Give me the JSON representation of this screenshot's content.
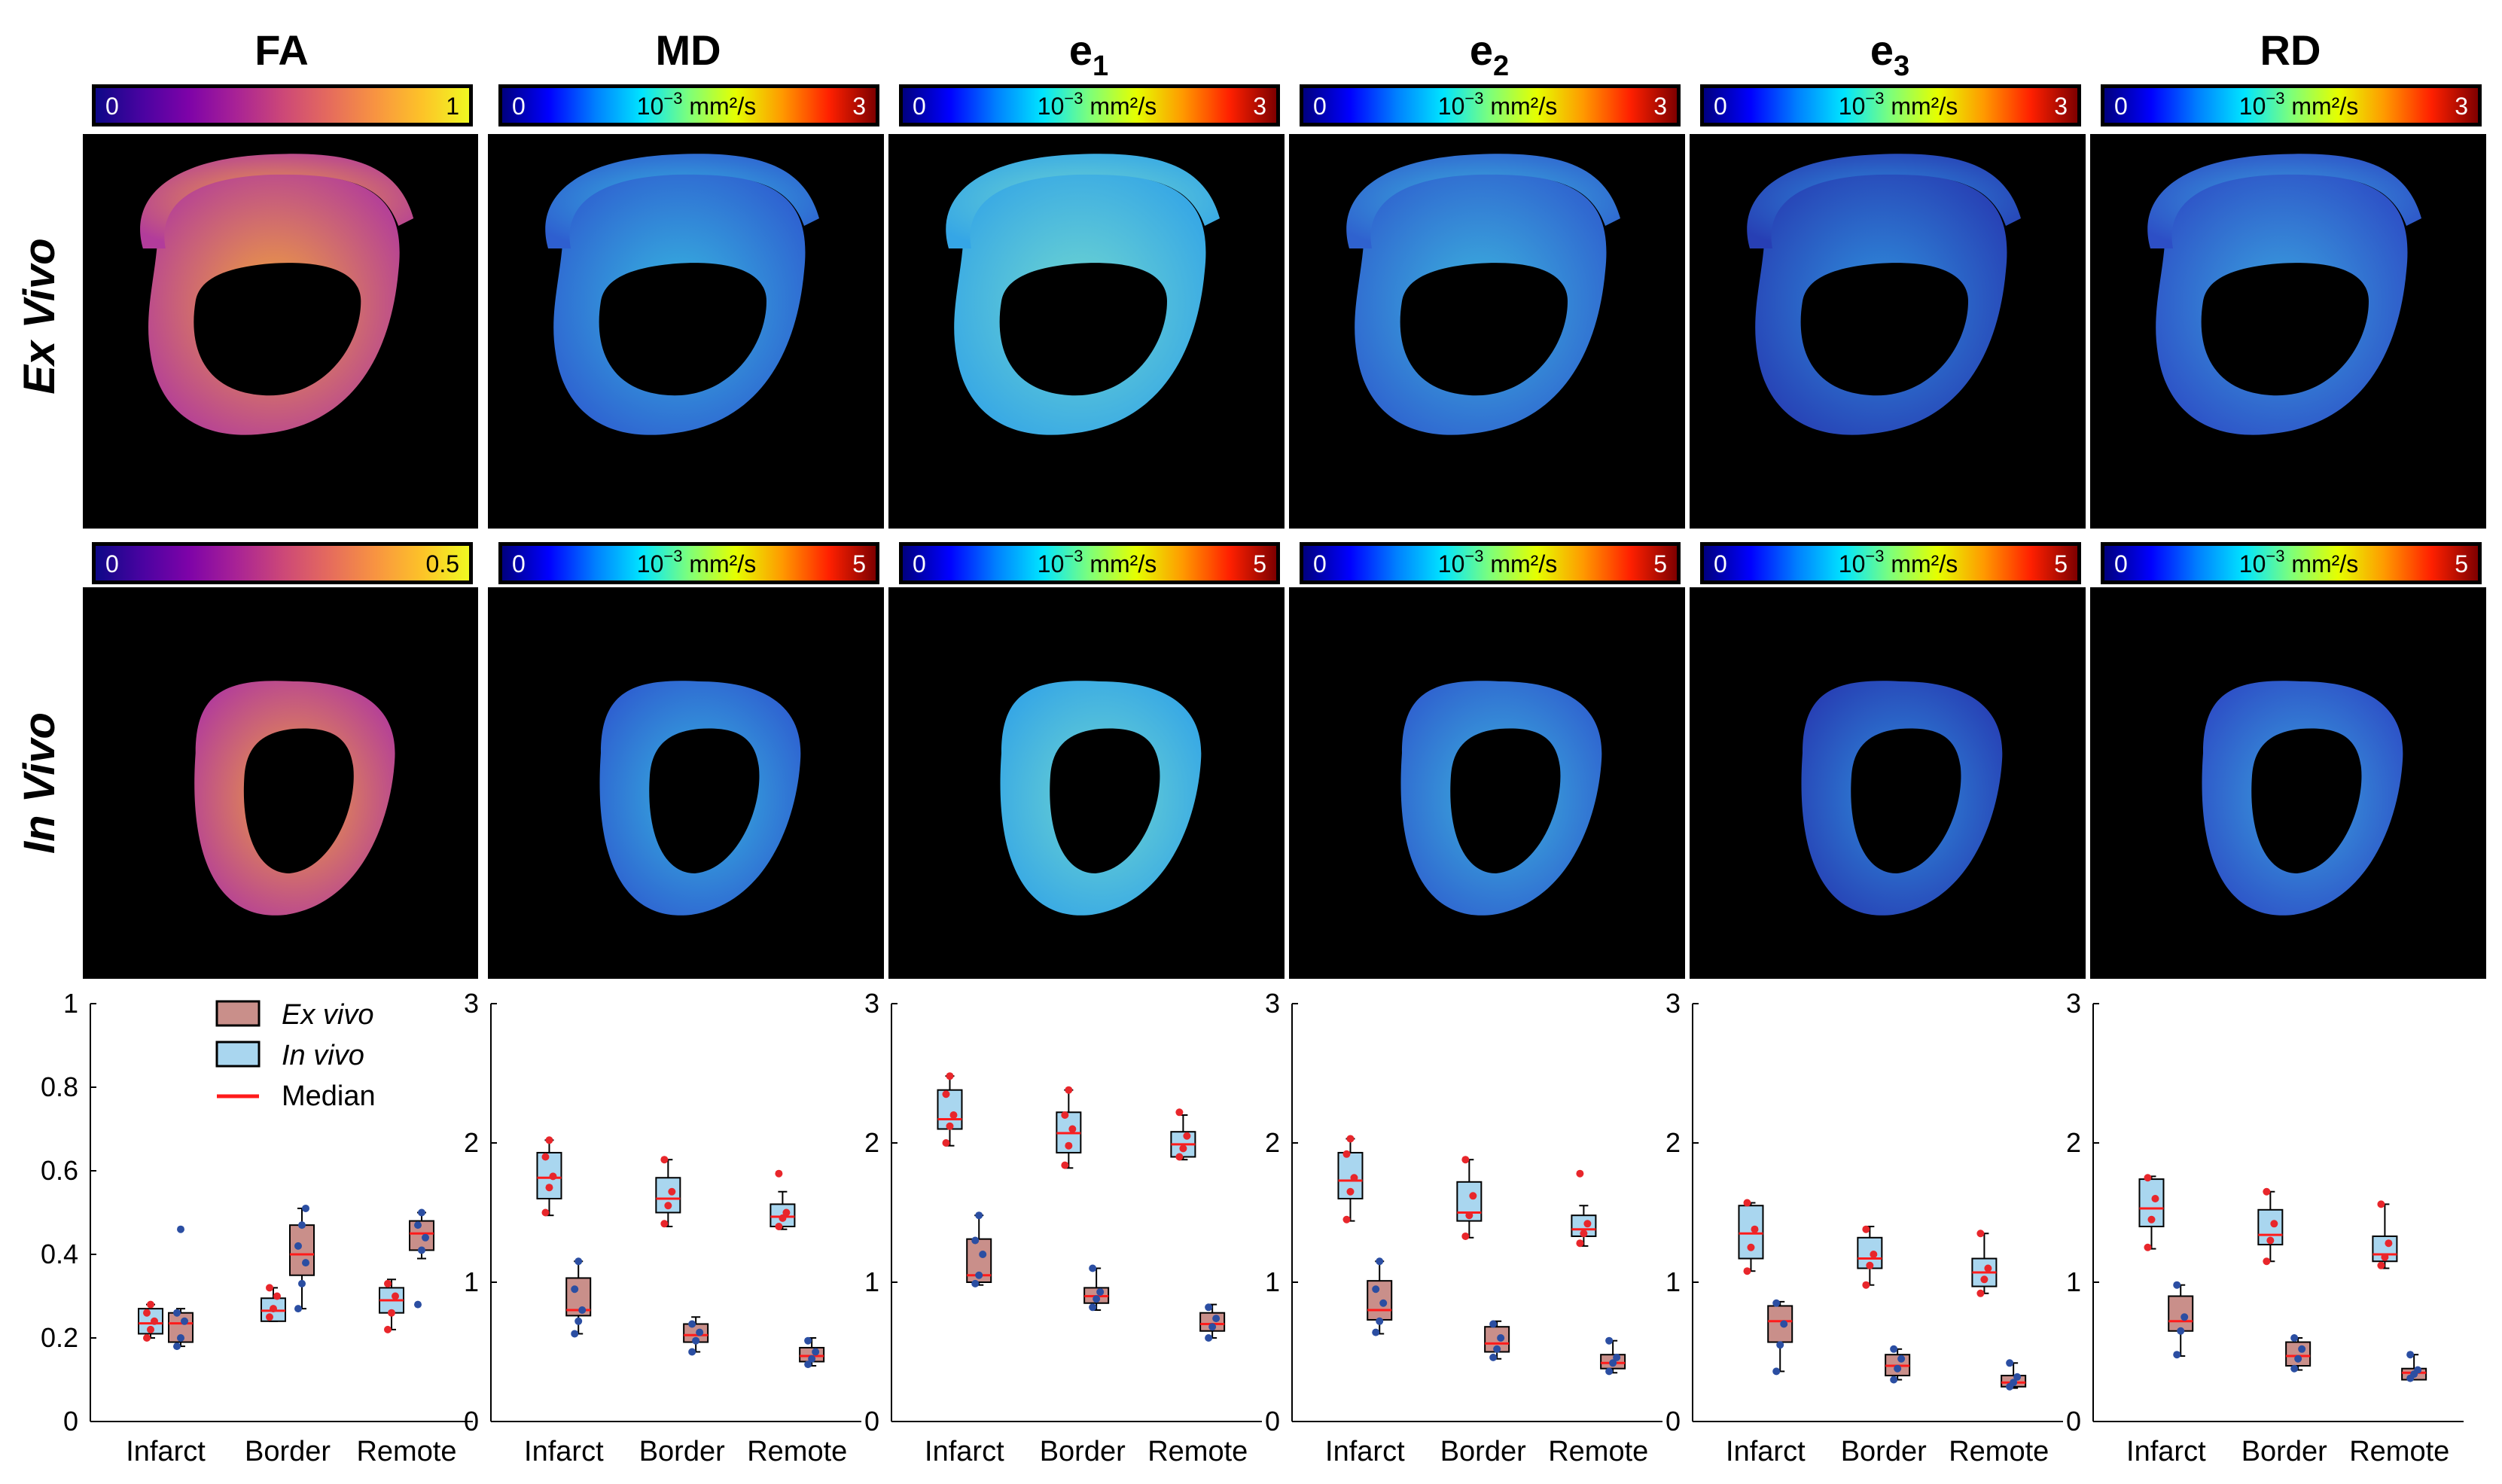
{
  "colors": {
    "ex_vivo_fill": "#c98f8a",
    "in_vivo_fill": "#a9d6ef",
    "median_color": "#ff1b1b",
    "ex_vivo_points": "#e8262b",
    "in_vivo_points": "#2b4ea2",
    "panel_background": "#000000"
  },
  "row_labels": {
    "ex_vivo": "Ex Vivo",
    "in_vivo": "In Vivo"
  },
  "columns": [
    {
      "title": "FA",
      "sub": "",
      "colormap": "plasma",
      "ex_cbar": {
        "min": "0",
        "max": "1",
        "unit_base": "",
        "unit_exp": "",
        "unit_tail": ""
      },
      "in_cbar": {
        "min": "0",
        "max": "0.5",
        "unit_base": "",
        "unit_exp": "",
        "unit_tail": ""
      }
    },
    {
      "title": "MD",
      "sub": "",
      "colormap": "jet",
      "ex_cbar": {
        "min": "0",
        "max": "3",
        "unit_base": "10",
        "unit_exp": "−3",
        "unit_tail": " mm²/s"
      },
      "in_cbar": {
        "min": "0",
        "max": "5",
        "unit_base": "10",
        "unit_exp": "−3",
        "unit_tail": " mm²/s"
      }
    },
    {
      "title": "e",
      "sub": "1",
      "colormap": "jet",
      "ex_cbar": {
        "min": "0",
        "max": "3",
        "unit_base": "10",
        "unit_exp": "−3",
        "unit_tail": " mm²/s"
      },
      "in_cbar": {
        "min": "0",
        "max": "5",
        "unit_base": "10",
        "unit_exp": "−3",
        "unit_tail": " mm²/s"
      }
    },
    {
      "title": "e",
      "sub": "2",
      "colormap": "jet",
      "ex_cbar": {
        "min": "0",
        "max": "3",
        "unit_base": "10",
        "unit_exp": "−3",
        "unit_tail": " mm²/s"
      },
      "in_cbar": {
        "min": "0",
        "max": "5",
        "unit_base": "10",
        "unit_exp": "−3",
        "unit_tail": " mm²/s"
      }
    },
    {
      "title": "e",
      "sub": "3",
      "colormap": "jet",
      "ex_cbar": {
        "min": "0",
        "max": "3",
        "unit_base": "10",
        "unit_exp": "−3",
        "unit_tail": " mm²/s"
      },
      "in_cbar": {
        "min": "0",
        "max": "5",
        "unit_base": "10",
        "unit_exp": "−3",
        "unit_tail": " mm²/s"
      }
    },
    {
      "title": "RD",
      "sub": "",
      "colormap": "jet",
      "ex_cbar": {
        "min": "0",
        "max": "3",
        "unit_base": "10",
        "unit_exp": "−3",
        "unit_tail": " mm²/s"
      },
      "in_cbar": {
        "min": "0",
        "max": "5",
        "unit_base": "10",
        "unit_exp": "−3",
        "unit_tail": " mm²/s"
      }
    }
  ],
  "legend": {
    "ex_vivo": "Ex vivo",
    "in_vivo": "In vivo",
    "median": "Median"
  },
  "chart_data": [
    {
      "type": "box",
      "title": "FA",
      "categories": [
        "Infarct",
        "Border",
        "Remote"
      ],
      "ylim": [
        0,
        1
      ],
      "yticks": [
        "0",
        "0.2",
        "0.4",
        "0.6",
        "0.8",
        "1"
      ],
      "in_vivo": [
        {
          "q1": 0.21,
          "median": 0.235,
          "q3": 0.27,
          "whisker_low": 0.2,
          "whisker_high": 0.28,
          "points": [
            0.2,
            0.22,
            0.24,
            0.26,
            0.28
          ]
        },
        {
          "q1": 0.24,
          "median": 0.265,
          "q3": 0.295,
          "whisker_low": 0.24,
          "whisker_high": 0.32,
          "points": [
            0.25,
            0.27,
            0.3,
            0.32
          ]
        },
        {
          "q1": 0.26,
          "median": 0.29,
          "q3": 0.32,
          "whisker_low": 0.22,
          "whisker_high": 0.34,
          "points": [
            0.22,
            0.26,
            0.3,
            0.33
          ]
        }
      ],
      "ex_vivo": [
        {
          "q1": 0.19,
          "median": 0.235,
          "q3": 0.26,
          "whisker_low": 0.18,
          "whisker_high": 0.27,
          "points": [
            0.18,
            0.2,
            0.24,
            0.26,
            0.46
          ]
        },
        {
          "q1": 0.35,
          "median": 0.4,
          "q3": 0.47,
          "whisker_low": 0.27,
          "whisker_high": 0.51,
          "points": [
            0.27,
            0.33,
            0.38,
            0.42,
            0.47,
            0.51
          ]
        },
        {
          "q1": 0.41,
          "median": 0.45,
          "q3": 0.48,
          "whisker_low": 0.39,
          "whisker_high": 0.5,
          "points": [
            0.28,
            0.41,
            0.44,
            0.47,
            0.5
          ]
        }
      ]
    },
    {
      "type": "box",
      "title": "MD",
      "categories": [
        "Infarct",
        "Border",
        "Remote"
      ],
      "ylim": [
        0,
        3
      ],
      "yticks": [
        "0",
        "1",
        "2",
        "3"
      ],
      "in_vivo": [
        {
          "q1": 1.6,
          "median": 1.75,
          "q3": 1.93,
          "whisker_low": 1.48,
          "whisker_high": 2.02,
          "points": [
            1.5,
            1.68,
            1.76,
            1.9,
            2.02
          ]
        },
        {
          "q1": 1.5,
          "median": 1.6,
          "q3": 1.75,
          "whisker_low": 1.4,
          "whisker_high": 1.88,
          "points": [
            1.42,
            1.55,
            1.65,
            1.88
          ]
        },
        {
          "q1": 1.4,
          "median": 1.47,
          "q3": 1.56,
          "whisker_low": 1.38,
          "whisker_high": 1.65,
          "points": [
            1.4,
            1.46,
            1.5,
            1.78
          ]
        }
      ],
      "ex_vivo": [
        {
          "q1": 0.76,
          "median": 0.8,
          "q3": 1.03,
          "whisker_low": 0.63,
          "whisker_high": 1.15,
          "points": [
            0.63,
            0.72,
            0.8,
            0.95,
            1.15
          ]
        },
        {
          "q1": 0.57,
          "median": 0.62,
          "q3": 0.7,
          "whisker_low": 0.5,
          "whisker_high": 0.75,
          "points": [
            0.5,
            0.58,
            0.64,
            0.7
          ]
        },
        {
          "q1": 0.43,
          "median": 0.47,
          "q3": 0.53,
          "whisker_low": 0.4,
          "whisker_high": 0.6,
          "points": [
            0.41,
            0.45,
            0.5,
            0.58
          ]
        }
      ]
    },
    {
      "type": "box",
      "title": "e1",
      "categories": [
        "Infarct",
        "Border",
        "Remote"
      ],
      "ylim": [
        0,
        3
      ],
      "yticks": [
        "0",
        "1",
        "2",
        "3"
      ],
      "in_vivo": [
        {
          "q1": 2.1,
          "median": 2.17,
          "q3": 2.38,
          "whisker_low": 1.98,
          "whisker_high": 2.48,
          "points": [
            2.0,
            2.12,
            2.2,
            2.35,
            2.48
          ]
        },
        {
          "q1": 1.93,
          "median": 2.07,
          "q3": 2.22,
          "whisker_low": 1.82,
          "whisker_high": 2.38,
          "points": [
            1.84,
            1.98,
            2.1,
            2.2,
            2.38
          ]
        },
        {
          "q1": 1.9,
          "median": 1.99,
          "q3": 2.08,
          "whisker_low": 1.88,
          "whisker_high": 2.2,
          "points": [
            1.9,
            1.96,
            2.05,
            2.22
          ]
        }
      ],
      "ex_vivo": [
        {
          "q1": 1.0,
          "median": 1.05,
          "q3": 1.31,
          "whisker_low": 0.98,
          "whisker_high": 1.48,
          "points": [
            0.99,
            1.05,
            1.2,
            1.3,
            1.48
          ]
        },
        {
          "q1": 0.85,
          "median": 0.9,
          "q3": 0.96,
          "whisker_low": 0.8,
          "whisker_high": 1.1,
          "points": [
            0.82,
            0.88,
            0.93,
            1.1
          ]
        },
        {
          "q1": 0.65,
          "median": 0.7,
          "q3": 0.78,
          "whisker_low": 0.6,
          "whisker_high": 0.84,
          "points": [
            0.6,
            0.68,
            0.74,
            0.82
          ]
        }
      ]
    },
    {
      "type": "box",
      "title": "e2",
      "categories": [
        "Infarct",
        "Border",
        "Remote"
      ],
      "ylim": [
        0,
        3
      ],
      "yticks": [
        "0",
        "1",
        "2",
        "3"
      ],
      "in_vivo": [
        {
          "q1": 1.6,
          "median": 1.73,
          "q3": 1.93,
          "whisker_low": 1.44,
          "whisker_high": 2.03,
          "points": [
            1.45,
            1.65,
            1.75,
            1.92,
            2.03
          ]
        },
        {
          "q1": 1.44,
          "median": 1.5,
          "q3": 1.72,
          "whisker_low": 1.32,
          "whisker_high": 1.88,
          "points": [
            1.33,
            1.48,
            1.62,
            1.88
          ]
        },
        {
          "q1": 1.33,
          "median": 1.38,
          "q3": 1.48,
          "whisker_low": 1.26,
          "whisker_high": 1.55,
          "points": [
            1.28,
            1.35,
            1.42,
            1.78
          ]
        }
      ],
      "ex_vivo": [
        {
          "q1": 0.73,
          "median": 0.8,
          "q3": 1.01,
          "whisker_low": 0.63,
          "whisker_high": 1.15,
          "points": [
            0.64,
            0.72,
            0.85,
            0.95,
            1.15
          ]
        },
        {
          "q1": 0.5,
          "median": 0.56,
          "q3": 0.68,
          "whisker_low": 0.45,
          "whisker_high": 0.72,
          "points": [
            0.46,
            0.52,
            0.6,
            0.7
          ]
        },
        {
          "q1": 0.38,
          "median": 0.42,
          "q3": 0.48,
          "whisker_low": 0.35,
          "whisker_high": 0.58,
          "points": [
            0.36,
            0.42,
            0.46,
            0.58
          ]
        }
      ]
    },
    {
      "type": "box",
      "title": "e3",
      "categories": [
        "Infarct",
        "Border",
        "Remote"
      ],
      "ylim": [
        0,
        3
      ],
      "yticks": [
        "0",
        "1",
        "2",
        "3"
      ],
      "in_vivo": [
        {
          "q1": 1.17,
          "median": 1.35,
          "q3": 1.55,
          "whisker_low": 1.08,
          "whisker_high": 1.57,
          "points": [
            1.08,
            1.25,
            1.38,
            1.57
          ]
        },
        {
          "q1": 1.1,
          "median": 1.17,
          "q3": 1.32,
          "whisker_low": 0.98,
          "whisker_high": 1.4,
          "points": [
            0.98,
            1.12,
            1.2,
            1.38
          ]
        },
        {
          "q1": 0.97,
          "median": 1.07,
          "q3": 1.17,
          "whisker_low": 0.92,
          "whisker_high": 1.35,
          "points": [
            0.92,
            1.02,
            1.1,
            1.35
          ]
        }
      ],
      "ex_vivo": [
        {
          "q1": 0.57,
          "median": 0.72,
          "q3": 0.83,
          "whisker_low": 0.36,
          "whisker_high": 0.86,
          "points": [
            0.36,
            0.55,
            0.7,
            0.85
          ]
        },
        {
          "q1": 0.33,
          "median": 0.4,
          "q3": 0.48,
          "whisker_low": 0.3,
          "whisker_high": 0.52,
          "points": [
            0.3,
            0.38,
            0.45,
            0.52
          ]
        },
        {
          "q1": 0.25,
          "median": 0.28,
          "q3": 0.33,
          "whisker_low": 0.24,
          "whisker_high": 0.42,
          "points": [
            0.25,
            0.28,
            0.32,
            0.42
          ]
        }
      ]
    },
    {
      "type": "box",
      "title": "RD",
      "categories": [
        "Infarct",
        "Border",
        "Remote"
      ],
      "ylim": [
        0,
        3
      ],
      "yticks": [
        "0",
        "1",
        "2",
        "3"
      ],
      "in_vivo": [
        {
          "q1": 1.4,
          "median": 1.53,
          "q3": 1.74,
          "whisker_low": 1.24,
          "whisker_high": 1.76,
          "points": [
            1.25,
            1.45,
            1.6,
            1.75
          ]
        },
        {
          "q1": 1.27,
          "median": 1.34,
          "q3": 1.52,
          "whisker_low": 1.15,
          "whisker_high": 1.65,
          "points": [
            1.15,
            1.3,
            1.42,
            1.65
          ]
        },
        {
          "q1": 1.15,
          "median": 1.2,
          "q3": 1.33,
          "whisker_low": 1.1,
          "whisker_high": 1.56,
          "points": [
            1.12,
            1.18,
            1.28,
            1.56
          ]
        }
      ],
      "ex_vivo": [
        {
          "q1": 0.65,
          "median": 0.72,
          "q3": 0.9,
          "whisker_low": 0.47,
          "whisker_high": 0.98,
          "points": [
            0.48,
            0.65,
            0.75,
            0.98
          ]
        },
        {
          "q1": 0.4,
          "median": 0.47,
          "q3": 0.57,
          "whisker_low": 0.37,
          "whisker_high": 0.6,
          "points": [
            0.38,
            0.45,
            0.52,
            0.6
          ]
        },
        {
          "q1": 0.3,
          "median": 0.35,
          "q3": 0.38,
          "whisker_low": 0.3,
          "whisker_high": 0.48,
          "points": [
            0.31,
            0.34,
            0.37,
            0.48
          ]
        }
      ]
    }
  ]
}
